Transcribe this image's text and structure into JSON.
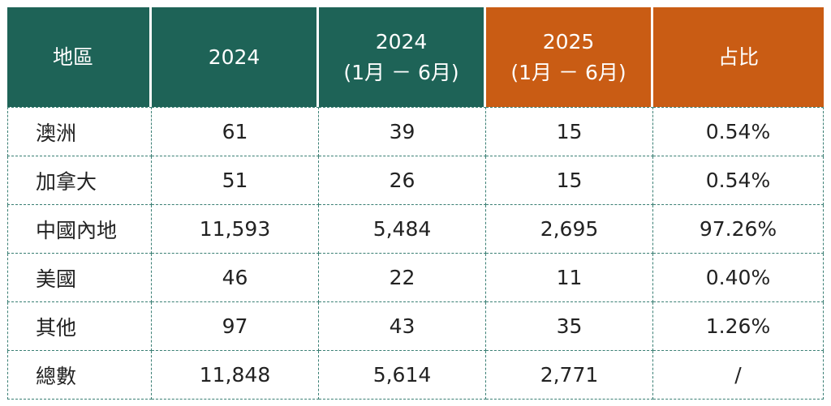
{
  "colors": {
    "header_teal": "#1e6357",
    "header_orange": "#c95c14",
    "grid": "#3a7f74"
  },
  "headers": [
    {
      "line1": "地區",
      "line2": ""
    },
    {
      "line1": "2024",
      "line2": ""
    },
    {
      "line1": "2024",
      "line2": "(1月 － 6月)"
    },
    {
      "line1": "2025",
      "line2": "(1月 － 6月)"
    },
    {
      "line1": "占比",
      "line2": ""
    }
  ],
  "rows": [
    {
      "region": "澳洲",
      "y2024": "61",
      "h1_2024": "39",
      "h1_2025": "15",
      "share": "0.54%"
    },
    {
      "region": "加拿大",
      "y2024": "51",
      "h1_2024": "26",
      "h1_2025": "15",
      "share": "0.54%"
    },
    {
      "region": "中國內地",
      "y2024": "11,593",
      "h1_2024": "5,484",
      "h1_2025": "2,695",
      "share": "97.26%"
    },
    {
      "region": "美國",
      "y2024": "46",
      "h1_2024": "22",
      "h1_2025": "11",
      "share": "0.40%"
    },
    {
      "region": "其他",
      "y2024": "97",
      "h1_2024": "43",
      "h1_2025": "35",
      "share": "1.26%"
    },
    {
      "region": "總數",
      "y2024": "11,848",
      "h1_2024": "5,614",
      "h1_2025": "2,771",
      "share": "/"
    }
  ]
}
